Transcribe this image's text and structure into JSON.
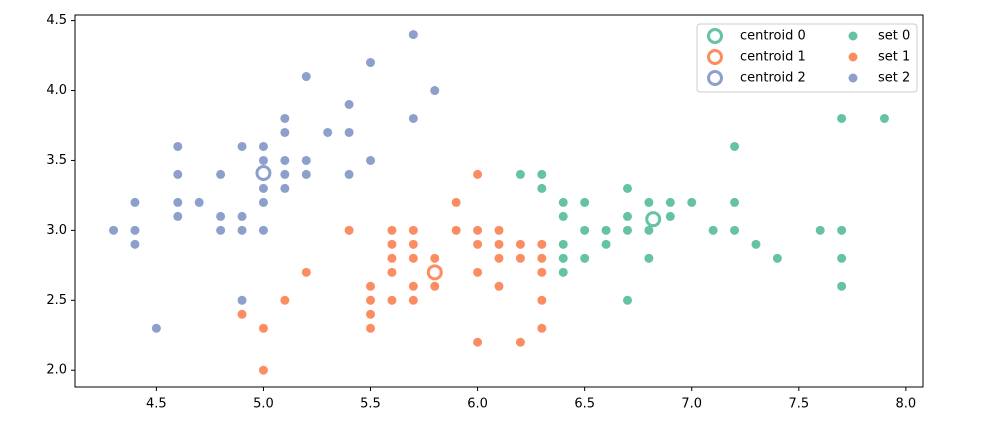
{
  "chart_data": {
    "type": "scatter",
    "xlim": [
      4.12,
      8.08
    ],
    "ylim": [
      1.88,
      4.54
    ],
    "xticks": [
      4.5,
      {
        "value": 5,
        "label": "5.0"
      },
      5.5,
      {
        "value": 6,
        "label": "6.0"
      },
      6.5,
      {
        "value": 7,
        "label": "7.0"
      },
      7.5,
      {
        "value": 8,
        "label": "8.0"
      }
    ],
    "yticks": [
      {
        "value": 2,
        "label": "2.0"
      },
      2.5,
      {
        "value": 3,
        "label": "3.0"
      },
      3.5,
      {
        "value": 4,
        "label": "4.0"
      },
      4.5
    ],
    "legend": "upper right",
    "legend_columns": 2,
    "series": [
      {
        "name": "centroid 0",
        "color": "#66c2a5",
        "marker": "ring",
        "x": [
          6.82
        ],
        "values": [
          3.08
        ]
      },
      {
        "name": "centroid 1",
        "color": "#fc8d62",
        "marker": "ring",
        "x": [
          5.8
        ],
        "values": [
          2.7
        ]
      },
      {
        "name": "centroid 2",
        "color": "#8da0cb",
        "marker": "ring",
        "x": [
          5.0
        ],
        "values": [
          3.41
        ]
      },
      {
        "name": "set 0",
        "color": "#66c2a5",
        "marker": "dot",
        "x": [
          6.2,
          6.3,
          6.3,
          6.4,
          6.4,
          6.4,
          6.4,
          6.4,
          6.5,
          6.5,
          6.5,
          6.6,
          6.6,
          6.7,
          6.7,
          6.7,
          6.7,
          6.8,
          6.8,
          6.8,
          6.9,
          6.9,
          7.0,
          7.1,
          7.2,
          7.2,
          7.2,
          7.3,
          7.4,
          7.6,
          7.7,
          7.7,
          7.7,
          7.7,
          7.9
        ],
        "values": [
          3.4,
          3.4,
          3.3,
          3.2,
          3.1,
          2.9,
          2.8,
          2.7,
          3.2,
          3.0,
          2.8,
          3.0,
          2.9,
          3.3,
          3.1,
          3.0,
          2.5,
          3.2,
          3.0,
          2.8,
          3.2,
          3.1,
          3.2,
          3.0,
          3.6,
          3.2,
          3.0,
          2.9,
          2.8,
          3.0,
          3.8,
          3.0,
          2.8,
          2.6,
          3.8
        ]
      },
      {
        "name": "set 1",
        "color": "#fc8d62",
        "marker": "dot",
        "x": [
          4.9,
          5.0,
          5.0,
          5.1,
          5.2,
          5.4,
          5.5,
          5.5,
          5.5,
          5.5,
          5.6,
          5.6,
          5.6,
          5.6,
          5.6,
          5.7,
          5.7,
          5.7,
          5.7,
          5.7,
          5.8,
          5.8,
          5.9,
          5.9,
          6.0,
          6.0,
          6.0,
          6.0,
          6.0,
          6.1,
          6.1,
          6.1,
          6.1,
          6.2,
          6.2,
          6.2,
          6.3,
          6.3,
          6.3,
          6.3,
          6.3
        ],
        "values": [
          2.4,
          2.3,
          2.0,
          2.5,
          2.7,
          3.0,
          2.6,
          2.5,
          2.4,
          2.3,
          3.0,
          2.9,
          2.8,
          2.7,
          2.5,
          3.0,
          2.9,
          2.8,
          2.6,
          2.5,
          2.8,
          2.6,
          3.2,
          3.0,
          3.4,
          3.0,
          2.9,
          2.7,
          2.2,
          3.0,
          2.9,
          2.8,
          2.6,
          2.9,
          2.8,
          2.2,
          2.9,
          2.8,
          2.7,
          2.5,
          2.3
        ]
      },
      {
        "name": "set 2",
        "color": "#8da0cb",
        "marker": "dot",
        "x": [
          4.3,
          4.4,
          4.4,
          4.4,
          4.5,
          4.6,
          4.6,
          4.6,
          4.6,
          4.7,
          4.8,
          4.8,
          4.8,
          4.9,
          4.9,
          4.9,
          4.9,
          5.0,
          5.0,
          5.0,
          5.0,
          5.0,
          5.0,
          5.1,
          5.1,
          5.1,
          5.1,
          5.1,
          5.2,
          5.2,
          5.2,
          5.3,
          5.4,
          5.4,
          5.4,
          5.5,
          5.5,
          5.7,
          5.7,
          5.8
        ],
        "values": [
          3.0,
          3.2,
          3.0,
          2.9,
          2.3,
          3.6,
          3.4,
          3.2,
          3.1,
          3.2,
          3.4,
          3.1,
          3.0,
          3.6,
          3.1,
          3.0,
          2.5,
          3.6,
          3.5,
          3.4,
          3.3,
          3.2,
          3.0,
          3.8,
          3.7,
          3.5,
          3.4,
          3.3,
          4.1,
          3.5,
          3.4,
          3.7,
          3.9,
          3.7,
          3.4,
          4.2,
          3.5,
          4.4,
          3.8,
          4.0
        ]
      }
    ]
  }
}
